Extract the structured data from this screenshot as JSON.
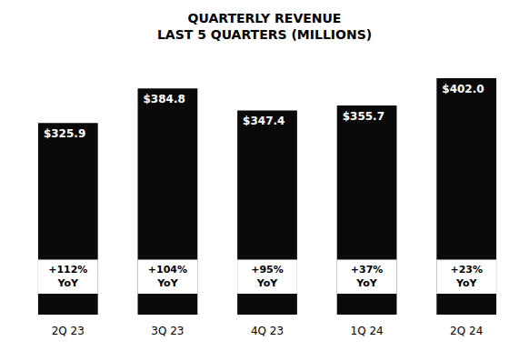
{
  "chart_data": {
    "type": "bar",
    "title": "QUARTERLY REVENUE",
    "subtitle": "LAST 5 QUARTERS (MILLIONS)",
    "categories": [
      "2Q 23",
      "3Q 23",
      "4Q 23",
      "1Q 24",
      "2Q 24"
    ],
    "values": [
      325.9,
      384.8,
      347.4,
      355.7,
      402.0
    ],
    "value_labels": [
      "$325.9",
      "$384.8",
      "$347.4",
      "$355.7",
      "$402.0"
    ],
    "data_labels": true,
    "annotations": [
      "+112%\nYoY",
      "+104%\nYoY",
      "+95%\nYoY",
      "+37%\nYoY",
      "+23%\nYoY"
    ],
    "color": "#0a0a0a",
    "ylim": [
      0,
      430
    ],
    "grid": false,
    "tick_labels": "x"
  }
}
